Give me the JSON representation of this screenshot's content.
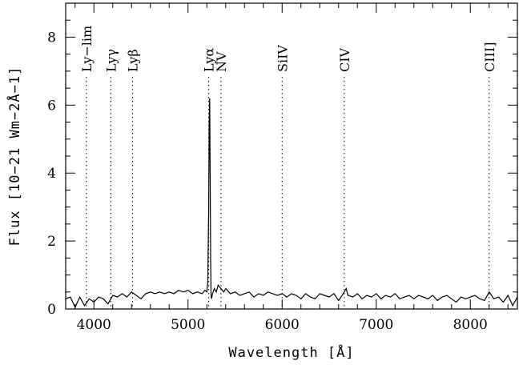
{
  "chart_data": {
    "type": "line",
    "title": "",
    "xlabel": "Wavelength [Å]",
    "ylabel": "Flux [10−21 Wm−2Å−1]",
    "xlim": [
      3700,
      8500
    ],
    "ylim": [
      0,
      9
    ],
    "xticks": [
      4000,
      5000,
      6000,
      7000,
      8000
    ],
    "xtick_labels": [
      "4000",
      "5000",
      "6000",
      "7000",
      "8000"
    ],
    "yticks": [
      0,
      2,
      4,
      6,
      8
    ],
    "ytick_labels": [
      "0",
      "2",
      "4",
      "6",
      "8"
    ],
    "grid": false,
    "series": [
      {
        "x": [
          3700,
          3750,
          3800,
          3850,
          3900,
          3950,
          4000,
          4050,
          4100,
          4150,
          4200,
          4250,
          4300,
          4350,
          4400,
          4450,
          4500,
          4550,
          4600,
          4650,
          4700,
          4750,
          4800,
          4850,
          4900,
          4950,
          5000,
          5050,
          5100,
          5150,
          5180,
          5200,
          5210,
          5220,
          5225,
          5230,
          5235,
          5240,
          5245,
          5250,
          5260,
          5280,
          5300,
          5320,
          5350,
          5380,
          5400,
          5450,
          5500,
          5550,
          5600,
          5650,
          5700,
          5750,
          5800,
          5850,
          5900,
          5950,
          6000,
          6050,
          6100,
          6150,
          6200,
          6250,
          6300,
          6350,
          6400,
          6450,
          6500,
          6550,
          6600,
          6650,
          6680,
          6700,
          6750,
          6800,
          6850,
          6900,
          6950,
          7000,
          7050,
          7100,
          7150,
          7200,
          7250,
          7300,
          7350,
          7400,
          7450,
          7500,
          7550,
          7600,
          7650,
          7700,
          7750,
          7800,
          7850,
          7900,
          7950,
          8000,
          8050,
          8100,
          8150,
          8200,
          8250,
          8300,
          8350,
          8400,
          8450,
          8500
        ],
        "y": [
          0.3,
          0.35,
          0.05,
          0.35,
          0.1,
          0.3,
          0.2,
          0.35,
          0.3,
          0.15,
          0.4,
          0.35,
          0.45,
          0.35,
          0.5,
          0.4,
          0.3,
          0.45,
          0.5,
          0.45,
          0.5,
          0.45,
          0.5,
          0.45,
          0.55,
          0.5,
          0.55,
          0.45,
          0.5,
          0.45,
          0.55,
          0.5,
          0.8,
          3.0,
          5.5,
          6.2,
          4.0,
          1.5,
          0.4,
          0.3,
          0.45,
          0.6,
          0.5,
          0.7,
          0.6,
          0.5,
          0.6,
          0.45,
          0.5,
          0.4,
          0.45,
          0.5,
          0.35,
          0.45,
          0.4,
          0.5,
          0.45,
          0.4,
          0.45,
          0.35,
          0.45,
          0.4,
          0.3,
          0.45,
          0.35,
          0.3,
          0.45,
          0.4,
          0.35,
          0.45,
          0.25,
          0.45,
          0.6,
          0.4,
          0.35,
          0.45,
          0.3,
          0.4,
          0.35,
          0.45,
          0.3,
          0.4,
          0.35,
          0.45,
          0.3,
          0.35,
          0.4,
          0.3,
          0.4,
          0.35,
          0.3,
          0.4,
          0.25,
          0.35,
          0.4,
          0.3,
          0.2,
          0.35,
          0.3,
          0.35,
          0.4,
          0.3,
          0.25,
          0.5,
          0.3,
          0.35,
          0.2,
          0.4,
          0.1,
          0.35
        ]
      }
    ],
    "lines": [
      {
        "label": "Ly−lim",
        "x": 3920
      },
      {
        "label": "Lyγ",
        "x": 4180
      },
      {
        "label": "Lyβ",
        "x": 4410
      },
      {
        "label": "Lyα",
        "x": 5220
      },
      {
        "label": "NV",
        "x": 5350
      },
      {
        "label": "SiIV",
        "x": 6000
      },
      {
        "label": "CIV",
        "x": 6660
      },
      {
        "label": "CIII]",
        "x": 8200
      }
    ]
  }
}
